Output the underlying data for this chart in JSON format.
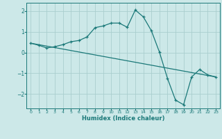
{
  "xlabel": "Humidex (Indice chaleur)",
  "background_color": "#cce8e8",
  "grid_color": "#aacece",
  "line_color": "#1a7878",
  "xlim": [
    -0.5,
    23.5
  ],
  "ylim": [
    -2.7,
    2.4
  ],
  "xticks": [
    0,
    1,
    2,
    3,
    4,
    5,
    6,
    7,
    8,
    9,
    10,
    11,
    12,
    13,
    14,
    15,
    16,
    17,
    18,
    19,
    20,
    21,
    22,
    23
  ],
  "yticks": [
    -2,
    -1,
    0,
    1,
    2
  ],
  "curve1_x": [
    0,
    1,
    2,
    3,
    4,
    5,
    6,
    7,
    8,
    9,
    10,
    11,
    12,
    13,
    14,
    15,
    16,
    17,
    18,
    19,
    20,
    21,
    22,
    23
  ],
  "curve1_y": [
    0.45,
    0.35,
    0.22,
    0.28,
    0.38,
    0.52,
    0.58,
    0.75,
    1.2,
    1.28,
    1.42,
    1.42,
    1.22,
    2.05,
    1.72,
    1.05,
    0.02,
    -1.25,
    -2.3,
    -2.52,
    -1.18,
    -0.82,
    -1.08,
    -1.18
  ],
  "curve2_x": [
    0,
    23
  ],
  "curve2_y": [
    0.45,
    -1.18
  ]
}
